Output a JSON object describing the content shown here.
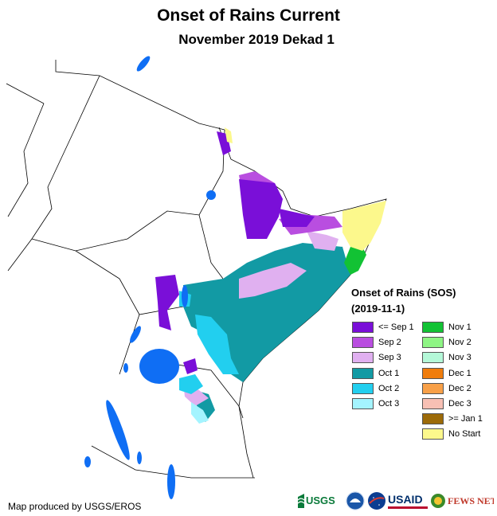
{
  "header": {
    "title": "Onset of Rains Current",
    "subtitle": "November 2019 Dekad 1"
  },
  "legend": {
    "title": "Onset of Rains (SOS)",
    "date": "(2019-11-1)",
    "items": [
      {
        "label": "<= Sep 1",
        "color": "#7a0fd8"
      },
      {
        "label": "Sep 2",
        "color": "#b94ee0"
      },
      {
        "label": "Sep 3",
        "color": "#e0b0f0"
      },
      {
        "label": "Oct 1",
        "color": "#129aa4"
      },
      {
        "label": "Oct 2",
        "color": "#22cfef"
      },
      {
        "label": "Oct 3",
        "color": "#a4f4ff"
      },
      {
        "label": "Nov 1",
        "color": "#12c234"
      },
      {
        "label": "Nov 2",
        "color": "#8ef584"
      },
      {
        "label": "Nov 3",
        "color": "#b4f8d8"
      },
      {
        "label": "Dec 1",
        "color": "#f07d0c"
      },
      {
        "label": "Dec 2",
        "color": "#f8a048"
      },
      {
        "label": "Dec 3",
        "color": "#f8c0b4"
      },
      {
        "label": ">= Jan 1",
        "color": "#9c6a08"
      },
      {
        "label": "No Start",
        "color": "#fcf88c"
      }
    ]
  },
  "water_color": "#0f6ef4",
  "footer": {
    "credit": "Map produced by USGS/EROS",
    "logos": {
      "usgs": "USGS",
      "noaa": "NOAA",
      "nasa": "NASA",
      "usaid": "USAID",
      "fewsnet": "FEWS NET"
    }
  }
}
